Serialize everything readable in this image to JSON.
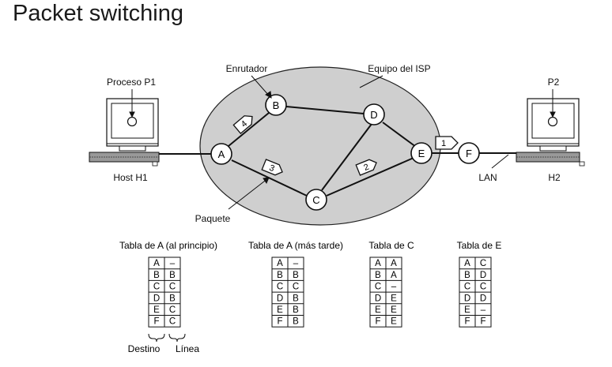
{
  "title": "Packet switching",
  "labels": {
    "proceso_p1": "Proceso P1",
    "p2": "P2",
    "enrutador": "Enrutador",
    "equipo_isp": "Equipo del ISP",
    "host_h1": "Host H1",
    "h2": "H2",
    "lan": "LAN",
    "paquete": "Paquete"
  },
  "routers": [
    "A",
    "B",
    "C",
    "D",
    "E",
    "F"
  ],
  "packets": [
    "1",
    "2",
    "3",
    "4"
  ],
  "tables": [
    {
      "title": "Tabla de A (al principio)",
      "rows": [
        [
          "A",
          "–"
        ],
        [
          "B",
          "B"
        ],
        [
          "C",
          "C"
        ],
        [
          "D",
          "B"
        ],
        [
          "E",
          "C"
        ],
        [
          "F",
          "C"
        ]
      ]
    },
    {
      "title": "Tabla de A (más tarde)",
      "rows": [
        [
          "A",
          "–"
        ],
        [
          "B",
          "B"
        ],
        [
          "C",
          "C"
        ],
        [
          "D",
          "B"
        ],
        [
          "E",
          "B"
        ],
        [
          "F",
          "B"
        ]
      ]
    },
    {
      "title": "Tabla de C",
      "rows": [
        [
          "A",
          "A"
        ],
        [
          "B",
          "A"
        ],
        [
          "C",
          "–"
        ],
        [
          "D",
          "E"
        ],
        [
          "E",
          "E"
        ],
        [
          "F",
          "E"
        ]
      ]
    },
    {
      "title": "Tabla de E",
      "rows": [
        [
          "A",
          "C"
        ],
        [
          "B",
          "D"
        ],
        [
          "C",
          "C"
        ],
        [
          "D",
          "D"
        ],
        [
          "E",
          "–"
        ],
        [
          "F",
          "F"
        ]
      ]
    }
  ],
  "legend": {
    "destino": "Destino",
    "linea": "Línea"
  }
}
